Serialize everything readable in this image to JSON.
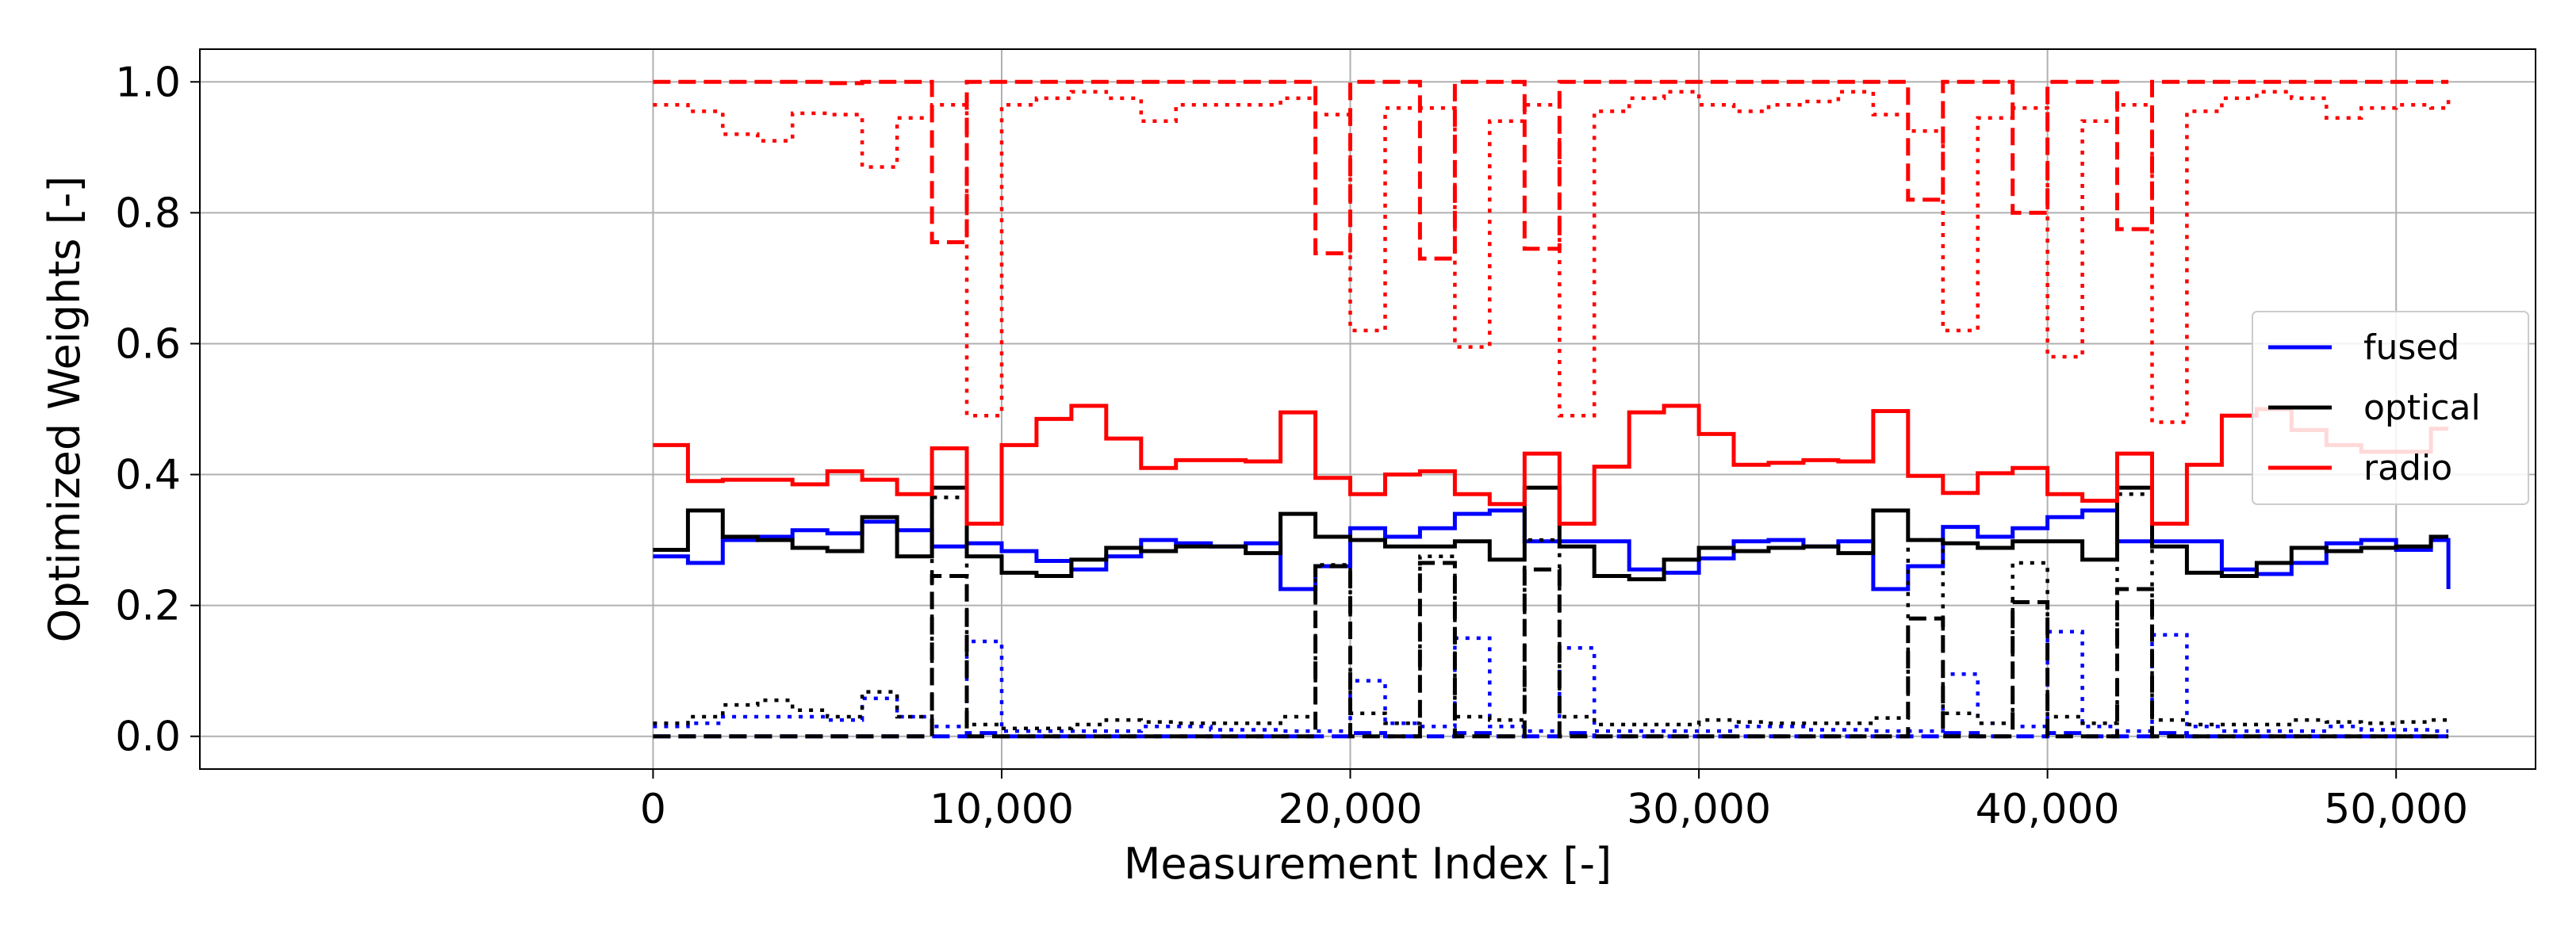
{
  "chart_data": {
    "type": "line",
    "title": "",
    "xlabel": "Measurement Index [-]",
    "ylabel": "Optimized Weights [-]",
    "xlim": [
      -13000,
      54000
    ],
    "ylim": [
      -0.05,
      1.05
    ],
    "xticks": [
      0,
      10000,
      20000,
      30000,
      40000,
      50000
    ],
    "xtick_labels": [
      "0",
      "10,000",
      "20,000",
      "30,000",
      "40,000",
      "50,000"
    ],
    "yticks": [
      0.0,
      0.2,
      0.4,
      0.6,
      0.8,
      1.0
    ],
    "ytick_labels": [
      "0.0",
      "0.2",
      "0.4",
      "0.6",
      "0.8",
      "1.0"
    ],
    "grid": true,
    "legend_position": "center-right",
    "legend": [
      {
        "label": "fused",
        "color": "#0000ff"
      },
      {
        "label": "optical",
        "color": "#000000"
      },
      {
        "label": "radio",
        "color": "#ff0000"
      }
    ],
    "drawstyle": "steps-post",
    "x": [
      0,
      1000,
      2000,
      3000,
      4000,
      5000,
      6000,
      7000,
      8000,
      9000,
      10000,
      11000,
      12000,
      13000,
      14000,
      15000,
      16000,
      17000,
      18000,
      19000,
      20000,
      21000,
      22000,
      23000,
      24000,
      25000,
      26000,
      27000,
      28000,
      29000,
      30000,
      31000,
      32000,
      33000,
      34000,
      35000,
      36000,
      37000,
      38000,
      39000,
      40000,
      41000,
      42000,
      43000,
      44000,
      45000,
      46000,
      47000,
      48000,
      49000,
      50000,
      51000,
      51500
    ],
    "series": [
      {
        "name": "fused",
        "color": "#0000ff",
        "linestyle": "solid",
        "values": [
          0.275,
          0.265,
          0.3,
          0.305,
          0.315,
          0.31,
          0.328,
          0.315,
          0.29,
          0.295,
          0.283,
          0.268,
          0.255,
          0.275,
          0.3,
          0.295,
          0.29,
          0.295,
          0.225,
          0.26,
          0.318,
          0.305,
          0.318,
          0.34,
          0.345,
          0.298,
          0.298,
          0.298,
          0.255,
          0.25,
          0.272,
          0.298,
          0.3,
          0.29,
          0.298,
          0.225,
          0.26,
          0.32,
          0.305,
          0.318,
          0.335,
          0.345,
          0.298,
          0.298,
          0.298,
          0.255,
          0.248,
          0.265,
          0.295,
          0.3,
          0.285,
          0.3,
          0.225
        ]
      },
      {
        "color": "#0000ff",
        "linestyle": "dotted",
        "values": [
          0.015,
          0.02,
          0.03,
          0.03,
          0.03,
          0.025,
          0.058,
          0.03,
          0.015,
          0.145,
          0.008,
          0.008,
          0.008,
          0.008,
          0.015,
          0.015,
          0.01,
          0.01,
          0.008,
          0.008,
          0.085,
          0.02,
          0.015,
          0.15,
          0.015,
          0.008,
          0.135,
          0.008,
          0.008,
          0.008,
          0.008,
          0.015,
          0.015,
          0.01,
          0.01,
          0.008,
          0.008,
          0.095,
          0.02,
          0.015,
          0.16,
          0.015,
          0.008,
          0.155,
          0.015,
          0.008,
          0.008,
          0.008,
          0.015,
          0.01,
          0.01,
          0.008,
          0.008
        ]
      },
      {
        "color": "#0000ff",
        "linestyle": "dashed",
        "values": [
          0.0,
          0.0,
          0.0,
          0.0,
          0.0,
          0.0,
          0.0,
          0.0,
          0.0,
          0.005,
          0.0,
          0.0,
          0.0,
          0.0,
          0.0,
          0.0,
          0.0,
          0.0,
          0.0,
          0.0,
          0.005,
          0.0,
          0.0,
          0.005,
          0.0,
          0.0,
          0.005,
          0.0,
          0.0,
          0.0,
          0.0,
          0.0,
          0.0,
          0.0,
          0.0,
          0.0,
          0.0,
          0.005,
          0.0,
          0.0,
          0.005,
          0.0,
          0.0,
          0.005,
          0.0,
          0.0,
          0.0,
          0.0,
          0.0,
          0.0,
          0.0,
          0.0,
          0.0
        ]
      },
      {
        "name": "optical",
        "color": "#000000",
        "linestyle": "solid",
        "values": [
          0.285,
          0.345,
          0.305,
          0.3,
          0.288,
          0.283,
          0.335,
          0.275,
          0.38,
          0.275,
          0.25,
          0.245,
          0.27,
          0.288,
          0.283,
          0.29,
          0.29,
          0.28,
          0.34,
          0.305,
          0.3,
          0.29,
          0.29,
          0.298,
          0.27,
          0.38,
          0.29,
          0.245,
          0.24,
          0.27,
          0.288,
          0.283,
          0.288,
          0.29,
          0.28,
          0.345,
          0.3,
          0.295,
          0.288,
          0.298,
          0.298,
          0.27,
          0.38,
          0.29,
          0.25,
          0.245,
          0.265,
          0.288,
          0.283,
          0.288,
          0.29,
          0.305,
          0.305
        ]
      },
      {
        "color": "#000000",
        "linestyle": "dotted",
        "values": [
          0.02,
          0.03,
          0.048,
          0.055,
          0.04,
          0.03,
          0.068,
          0.03,
          0.365,
          0.018,
          0.012,
          0.012,
          0.018,
          0.025,
          0.022,
          0.02,
          0.02,
          0.02,
          0.03,
          0.262,
          0.035,
          0.02,
          0.275,
          0.03,
          0.025,
          0.3,
          0.03,
          0.018,
          0.018,
          0.018,
          0.025,
          0.022,
          0.02,
          0.02,
          0.02,
          0.028,
          0.3,
          0.035,
          0.02,
          0.265,
          0.03,
          0.02,
          0.37,
          0.025,
          0.018,
          0.018,
          0.018,
          0.025,
          0.022,
          0.02,
          0.022,
          0.025,
          0.025
        ]
      },
      {
        "color": "#000000",
        "linestyle": "dashed",
        "values": [
          0.0,
          0.0,
          0.0,
          0.0,
          0.0,
          0.0,
          0.0,
          0.0,
          0.245,
          0.0,
          0.0,
          0.0,
          0.0,
          0.0,
          0.0,
          0.0,
          0.0,
          0.0,
          0.0,
          0.26,
          0.0,
          0.0,
          0.265,
          0.0,
          0.0,
          0.255,
          0.0,
          0.0,
          0.0,
          0.0,
          0.0,
          0.0,
          0.0,
          0.0,
          0.0,
          0.0,
          0.18,
          0.0,
          0.0,
          0.205,
          0.0,
          0.0,
          0.225,
          0.0,
          0.0,
          0.0,
          0.0,
          0.0,
          0.0,
          0.0,
          0.0,
          0.0,
          0.0
        ]
      },
      {
        "name": "radio",
        "color": "#ff0000",
        "linestyle": "solid",
        "values": [
          0.445,
          0.39,
          0.392,
          0.392,
          0.385,
          0.405,
          0.392,
          0.37,
          0.44,
          0.325,
          0.445,
          0.485,
          0.505,
          0.455,
          0.41,
          0.422,
          0.422,
          0.42,
          0.495,
          0.395,
          0.37,
          0.4,
          0.405,
          0.37,
          0.355,
          0.432,
          0.325,
          0.412,
          0.495,
          0.505,
          0.462,
          0.415,
          0.418,
          0.422,
          0.42,
          0.497,
          0.398,
          0.372,
          0.402,
          0.41,
          0.37,
          0.36,
          0.432,
          0.325,
          0.415,
          0.49,
          0.5,
          0.468,
          0.445,
          0.435,
          0.435,
          0.47,
          0.47
        ]
      },
      {
        "color": "#ff0000",
        "linestyle": "dotted",
        "values": [
          0.965,
          0.955,
          0.92,
          0.91,
          0.952,
          0.95,
          0.87,
          0.945,
          0.965,
          0.49,
          0.965,
          0.975,
          0.985,
          0.975,
          0.94,
          0.965,
          0.965,
          0.965,
          0.975,
          0.95,
          0.62,
          0.96,
          0.96,
          0.595,
          0.94,
          0.965,
          0.49,
          0.955,
          0.975,
          0.985,
          0.965,
          0.955,
          0.965,
          0.97,
          0.985,
          0.95,
          0.925,
          0.62,
          0.945,
          0.96,
          0.58,
          0.94,
          0.965,
          0.48,
          0.955,
          0.975,
          0.985,
          0.975,
          0.945,
          0.96,
          0.965,
          0.96,
          0.98
        ]
      },
      {
        "color": "#ff0000",
        "linestyle": "dashed",
        "values": [
          1.0,
          1.0,
          1.0,
          1.0,
          1.0,
          0.998,
          1.0,
          1.0,
          0.755,
          1.0,
          1.0,
          1.0,
          1.0,
          1.0,
          1.0,
          1.0,
          1.0,
          1.0,
          1.0,
          0.738,
          1.0,
          1.0,
          0.73,
          1.0,
          1.0,
          0.745,
          1.0,
          1.0,
          1.0,
          1.0,
          1.0,
          1.0,
          1.0,
          1.0,
          1.0,
          1.0,
          0.82,
          1.0,
          1.0,
          0.8,
          1.0,
          1.0,
          0.775,
          1.0,
          1.0,
          1.0,
          1.0,
          1.0,
          1.0,
          1.0,
          1.0,
          1.0,
          1.0
        ]
      }
    ]
  }
}
